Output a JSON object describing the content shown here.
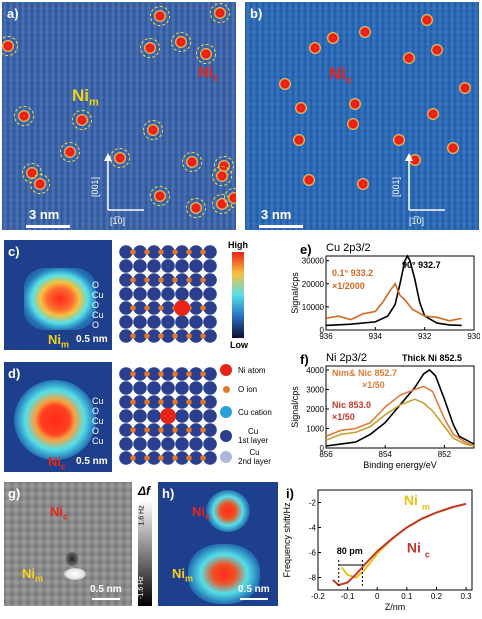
{
  "panel_a": {
    "label": "a)",
    "ni_label": "Ni",
    "ni_sub_m": "m",
    "ni_sub_c": "c",
    "scale": "3 nm",
    "axis_v": "[001]",
    "axis_h": "[1̅0]"
  },
  "panel_b": {
    "label": "b)",
    "ni_label": "Ni",
    "ni_sub_c": "c",
    "scale": "3 nm",
    "axis_v": "[001]",
    "axis_h": "[1̅0]"
  },
  "panel_c": {
    "label": "c)",
    "atom_labels": [
      "O",
      "Cu",
      "O",
      "Cu",
      "O"
    ],
    "ni_label": "Ni",
    "ni_sub": "m",
    "scale": "0.5 nm",
    "cbar_high": "High",
    "cbar_low": "Low"
  },
  "panel_d": {
    "label": "d)",
    "atom_labels": [
      "Cu",
      "O",
      "Cu",
      "O",
      "Cu"
    ],
    "ni_label": "Ni",
    "ni_sub": "c",
    "scale": "0.5 nm",
    "legend": [
      {
        "name": "Ni atom",
        "color": "#e8231a"
      },
      {
        "name": "O ion",
        "color": "#e0782a"
      },
      {
        "name": "Cu cation",
        "color": "#2a9fd8"
      },
      {
        "name": "Cu\n1st layer",
        "color": "#2c3f8f"
      },
      {
        "name": "Cu\n2nd layer",
        "color": "#aeb6dc"
      }
    ]
  },
  "panel_e": {
    "label": "e)",
    "title": "Cu 2p3/2",
    "ylabel": "Signal/cps",
    "annot_90": "90° 932.7",
    "annot_01": "0.1° 933.2",
    "annot_scale": "×1/2000"
  },
  "panel_f": {
    "label": "f)",
    "title": "Ni 2p3/2",
    "ylabel": "Signal/cps",
    "xlabel": "Binding energy/eV",
    "annot_thick": "Thick Ni 852.5",
    "annot_mc": "Nim& Nic 852.7",
    "annot_mc_scale": "×1/50",
    "annot_c": "Nic 853.0",
    "annot_c_scale": "×1/50"
  },
  "panel_g": {
    "label": "g)",
    "ni_c": "Ni",
    "ni_c_sub": "c",
    "ni_m": "Ni",
    "ni_m_sub": "m",
    "scale": "0.5 nm",
    "cbar_title": "Δf",
    "cbar_top": "1.6 Hz",
    "cbar_bottom": "-1.6 Hz"
  },
  "panel_h": {
    "label": "h)",
    "ni_c": "Ni",
    "ni_c_sub": "c",
    "ni_m": "Ni",
    "ni_m_sub": "m",
    "scale": "0.5 nm"
  },
  "panel_i": {
    "label": "i)",
    "ylabel": "Frequency shift/Hz",
    "xlabel": "Z/nm",
    "annot_80": "80 pm",
    "ni_m": "Ni",
    "ni_m_sub": "m",
    "ni_c": "Ni",
    "ni_c_sub": "c"
  },
  "chart_data": [
    {
      "type": "line",
      "panel": "e",
      "title": "Cu 2p3/2",
      "ylabel": "Signal/cps",
      "xlim": [
        936,
        930
      ],
      "ylim": [
        0,
        32000
      ],
      "xticks": [
        936,
        934,
        932,
        930
      ],
      "yticks": [
        0,
        10000,
        20000,
        30000
      ],
      "series": [
        {
          "color": "#000000",
          "x": [
            936,
            935,
            934,
            933.5,
            933.2,
            933.0,
            932.8,
            932.7,
            932.6,
            932.4,
            932.2,
            932.0,
            931.5,
            931,
            930.5
          ],
          "y": [
            2000,
            2500,
            3500,
            6000,
            11000,
            20000,
            30000,
            32000,
            30000,
            22000,
            12000,
            6000,
            3000,
            2200,
            2000
          ]
        },
        {
          "color": "#d2691e",
          "x": [
            936,
            935.5,
            935,
            934.5,
            934,
            933.7,
            933.4,
            933.2,
            933.0,
            932.8,
            932.5,
            932.0,
            931.5,
            931,
            930.5
          ],
          "y": [
            5000,
            6000,
            4500,
            7000,
            8000,
            12000,
            17000,
            20000,
            15000,
            13000,
            9000,
            6000,
            5500,
            4000,
            5000
          ]
        }
      ]
    },
    {
      "type": "line",
      "panel": "f",
      "title": "Ni 2p3/2",
      "ylabel": "Signal/cps",
      "xlabel": "Binding energy/eV",
      "xlim": [
        856,
        851
      ],
      "ylim": [
        0,
        4200
      ],
      "xticks": [
        856,
        854,
        852
      ],
      "yticks": [
        0,
        1000,
        2000,
        3000,
        4000
      ],
      "series": [
        {
          "color": "#000000",
          "x": [
            856,
            855,
            854.5,
            854,
            853.5,
            853,
            852.7,
            852.5,
            852.3,
            852,
            851.7,
            851.5,
            851
          ],
          "y": [
            100,
            300,
            700,
            1300,
            2200,
            3100,
            3800,
            4000,
            3700,
            2500,
            1200,
            600,
            200
          ]
        },
        {
          "color": "#e07b39",
          "x": [
            856,
            855.5,
            855,
            854.5,
            854,
            853.5,
            853,
            852.7,
            852.4,
            852,
            851.7,
            851.3,
            851
          ],
          "y": [
            600,
            900,
            1000,
            1300,
            2100,
            2700,
            3000,
            3150,
            2900,
            1500,
            700,
            300,
            100
          ]
        },
        {
          "color": "#c8a030",
          "x": [
            856,
            855.5,
            855,
            854.5,
            854,
            853.5,
            853,
            852.7,
            852.4,
            852,
            851.7,
            851.3,
            851
          ],
          "y": [
            400,
            700,
            800,
            1100,
            1700,
            2200,
            2500,
            2300,
            1900,
            1100,
            500,
            200,
            100
          ]
        }
      ]
    },
    {
      "type": "line",
      "panel": "i",
      "ylabel": "Frequency shift/Hz",
      "xlabel": "Z/nm",
      "xlim": [
        -0.2,
        0.32
      ],
      "ylim": [
        -9,
        -1
      ],
      "xticks": [
        -0.2,
        -0.1,
        0.0,
        0.1,
        0.2,
        0.3
      ],
      "yticks": [
        -8,
        -6,
        -4,
        -2
      ],
      "series": [
        {
          "name": "Nim",
          "color": "#e8c41a",
          "x": [
            -0.12,
            -0.1,
            -0.07,
            -0.04,
            0.0,
            0.05,
            0.1,
            0.15,
            0.2,
            0.25,
            0.3
          ],
          "y": [
            -7.2,
            -7.8,
            -8.0,
            -7.3,
            -6.1,
            -4.9,
            -4.0,
            -3.3,
            -2.8,
            -2.4,
            -2.1
          ]
        },
        {
          "name": "Nic",
          "color": "#c0392b",
          "x": [
            -0.15,
            -0.13,
            -0.1,
            -0.07,
            -0.04,
            0.0,
            0.05,
            0.1,
            0.15,
            0.2,
            0.25,
            0.3
          ],
          "y": [
            -8.2,
            -8.6,
            -8.4,
            -7.7,
            -6.9,
            -5.9,
            -4.9,
            -4.0,
            -3.3,
            -2.8,
            -2.4,
            -2.1
          ]
        }
      ]
    }
  ]
}
